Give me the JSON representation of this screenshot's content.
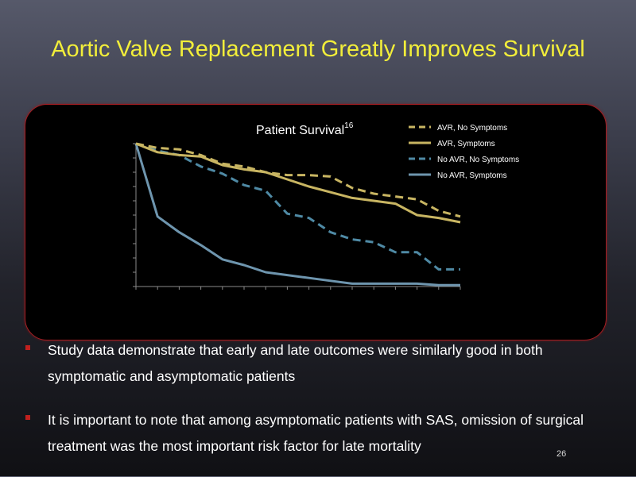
{
  "slide": {
    "title": "Aortic Valve Replacement Greatly Improves Survival",
    "page_number": "26"
  },
  "bullets": [
    "Study data demonstrate that early and late outcomes were similarly good in both symptomatic and asymptomatic patients",
    "It is important to note that among asymptomatic patients with SAS, omission of surgical treatment was the most important risk factor for late mortality"
  ],
  "chart_data": {
    "type": "line",
    "title": "Patient Survival",
    "title_superscript": "16",
    "xlabel": "",
    "ylabel": "",
    "xlim": [
      0,
      15
    ],
    "ylim": [
      0,
      100
    ],
    "x_ticks": [
      0,
      1,
      2,
      3,
      4,
      5,
      6,
      7,
      8,
      9,
      10,
      11,
      12,
      13,
      14,
      15
    ],
    "y_ticks": [
      0,
      10,
      20,
      30,
      40,
      50,
      60,
      70,
      80,
      90,
      100
    ],
    "grid": false,
    "legend_position": "top-right",
    "x": [
      0,
      1,
      2,
      3,
      4,
      5,
      6,
      7,
      8,
      9,
      10,
      11,
      12,
      13,
      14,
      15
    ],
    "series": [
      {
        "name": "AVR, No Symptoms",
        "style": "dashed",
        "color": "#c8b562",
        "values": [
          100,
          97,
          96,
          92,
          86,
          84,
          80,
          78,
          78,
          77,
          69,
          65,
          63,
          61,
          53,
          49
        ]
      },
      {
        "name": "AVR, Symptoms",
        "style": "solid",
        "color": "#c8b562",
        "values": [
          100,
          94,
          92,
          91,
          85,
          82,
          80,
          75,
          70,
          66,
          62,
          60,
          58,
          50,
          48,
          45
        ]
      },
      {
        "name": "No AVR, No Symptoms",
        "style": "dashed",
        "color": "#4f8aa5",
        "values": [
          100,
          95,
          92,
          84,
          79,
          71,
          67,
          51,
          48,
          38,
          33,
          31,
          24,
          24,
          12,
          12
        ]
      },
      {
        "name": "No AVR, Symptoms",
        "style": "solid",
        "color": "#6e95ae",
        "values": [
          100,
          49,
          38,
          29,
          19,
          15,
          10,
          8,
          6,
          4,
          2,
          2,
          2,
          2,
          1,
          1
        ]
      }
    ]
  }
}
